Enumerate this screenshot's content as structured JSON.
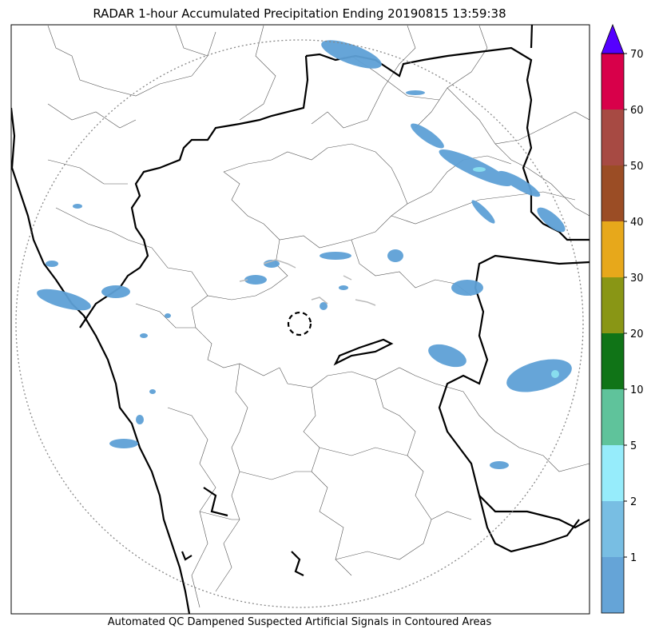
{
  "title": "RADAR 1-hour Accumulated Precipitation Ending 20190815 13:59:38",
  "footer": "Automated QC Dampened Suspected Artificial Signals in Contoured Areas",
  "colors": {
    "land_background": "#ffffff",
    "state_border": "#000000",
    "district_border": "#555555",
    "range_ring": "#888888",
    "precip_light": "#5ea1d6",
    "precip_mid": "#88ddee",
    "qc_contour": "#bbbbbb"
  },
  "colorbar": {
    "levels": [
      "1",
      "2",
      "5",
      "10",
      "20",
      "30",
      "40",
      "50",
      "60",
      "70"
    ],
    "colors": [
      "#65a4d7",
      "#78bee3",
      "#96ecfb",
      "#5fc39b",
      "#107417",
      "#899615",
      "#e7a81b",
      "#9b4d25",
      "#a74a43",
      "#d8004a"
    ],
    "extend_color": "#5500ff"
  },
  "legend": {
    "radar_site_marker": "dashed-circle"
  }
}
